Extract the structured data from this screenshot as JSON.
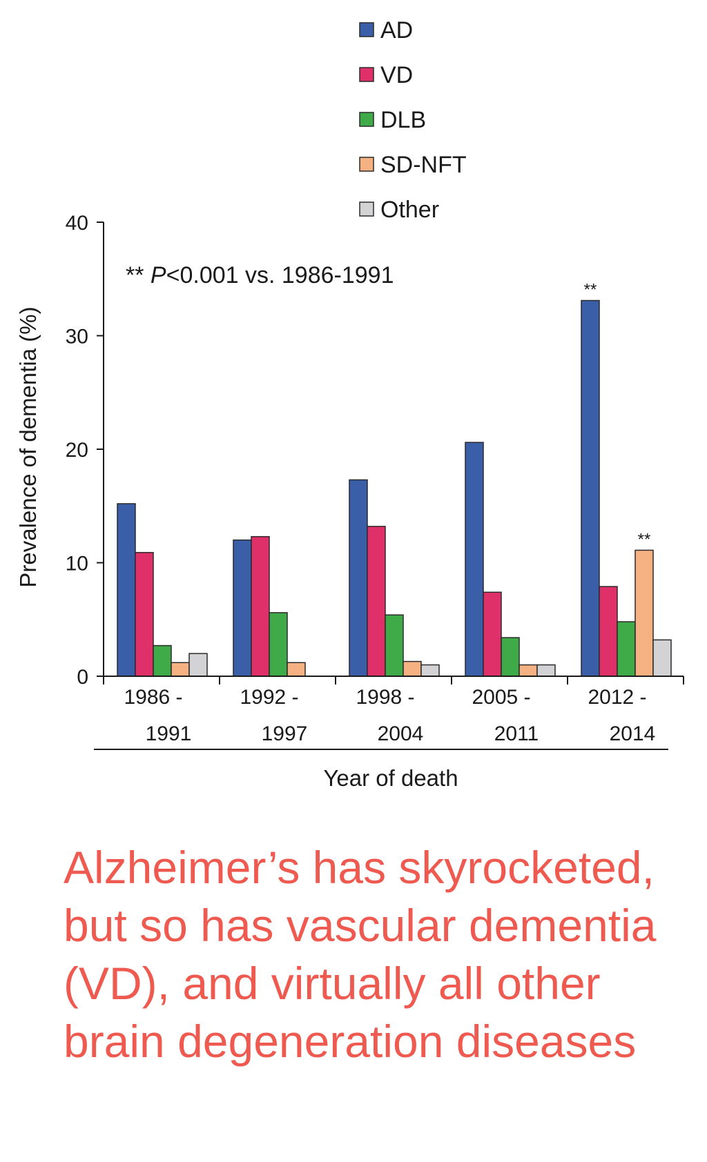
{
  "chart_data": {
    "type": "bar",
    "categories": [
      [
        "1986 -",
        "1991"
      ],
      [
        "1992 -",
        "1997"
      ],
      [
        "1998 -",
        "2004"
      ],
      [
        "2005 -",
        "2011"
      ],
      [
        "2012 -",
        "2014"
      ]
    ],
    "series": [
      {
        "name": "AD",
        "color": "#3a5ea8",
        "values": [
          15.2,
          12.0,
          17.3,
          20.6,
          33.1
        ]
      },
      {
        "name": "VD",
        "color": "#e0306a",
        "values": [
          10.9,
          12.3,
          13.2,
          7.4,
          7.9
        ]
      },
      {
        "name": "DLB",
        "color": "#3eaa48",
        "values": [
          2.7,
          5.6,
          5.4,
          3.4,
          4.8
        ]
      },
      {
        "name": "SD-NFT",
        "color": "#f6b183",
        "values": [
          1.2,
          1.2,
          1.3,
          1.0,
          11.1
        ]
      },
      {
        "name": "Other",
        "color": "#d3d3d5",
        "values": [
          2.0,
          null,
          1.0,
          1.0,
          3.2
        ]
      }
    ],
    "significance_marks": [
      {
        "category_index": 4,
        "series_index": 0,
        "label": "**"
      },
      {
        "category_index": 4,
        "series_index": 3,
        "label": "**"
      }
    ],
    "ylim": [
      0,
      40
    ],
    "yticks": [
      "0",
      "10",
      "20",
      "30",
      "40"
    ],
    "ylabel": "Prevalence of dementia (%)",
    "xlabel": "Year of death",
    "annotation": {
      "prefix": "** ",
      "italic": "P",
      "suffix": "<0.001 vs. 1986-1991"
    },
    "legend_position": "top",
    "grid": false
  },
  "caption": "Alzheimer’s has skyrocketed, but so has vascular dementia (VD), and virtually all other brain degeneration diseases"
}
